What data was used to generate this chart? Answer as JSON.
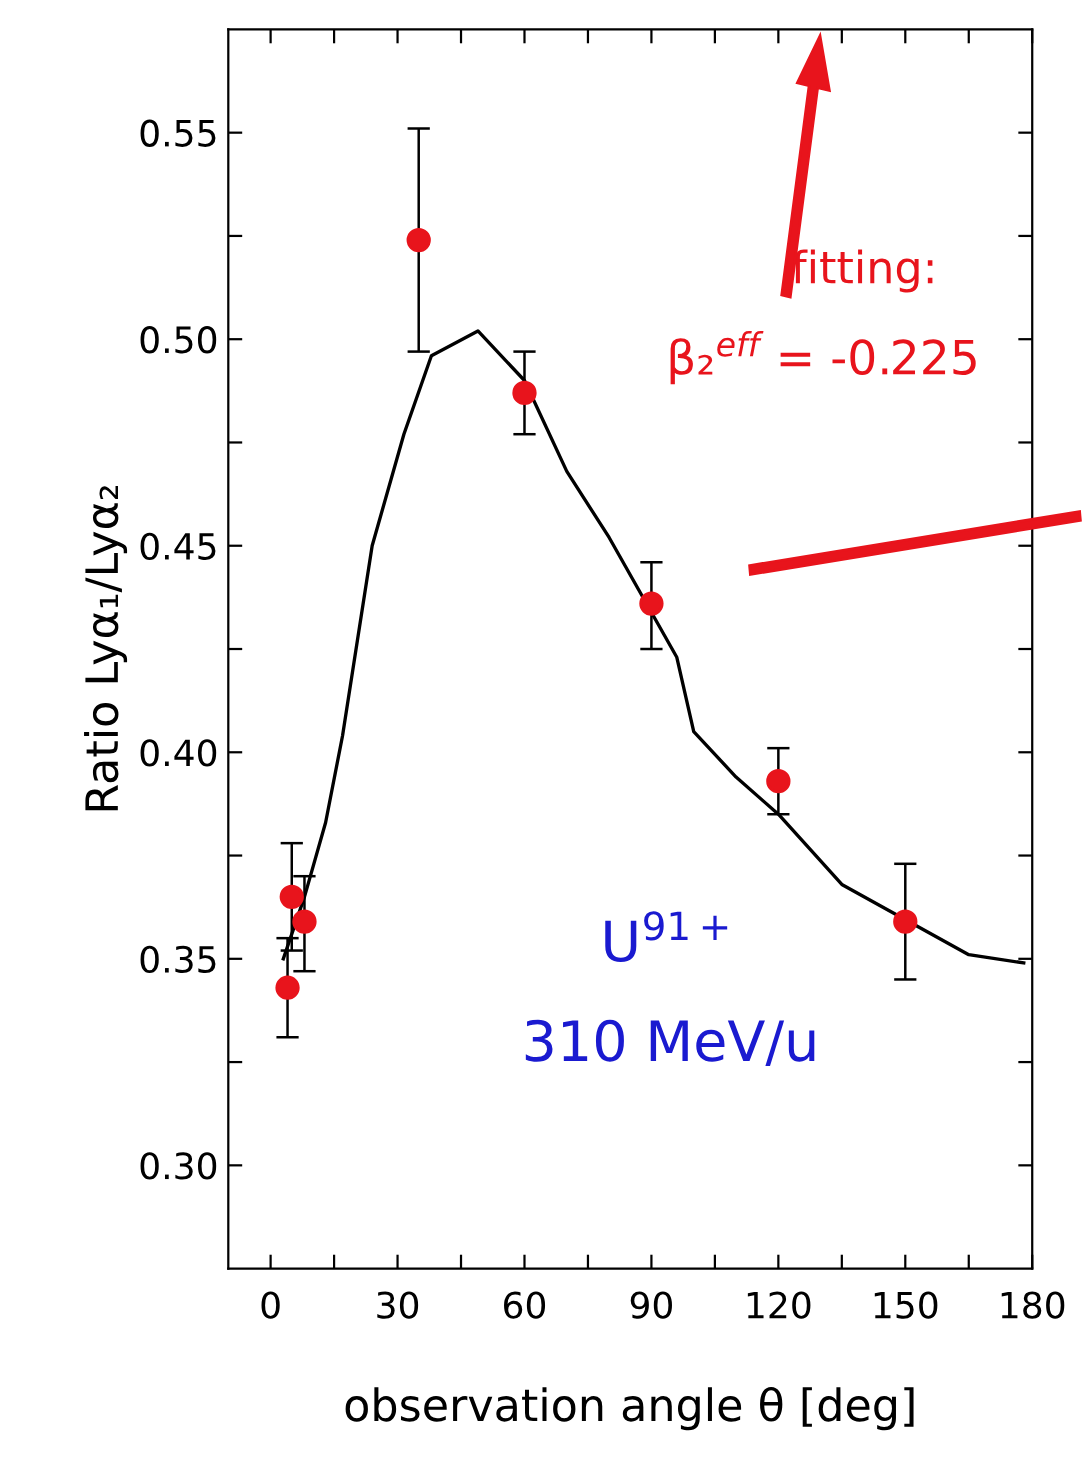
{
  "chart_data": {
    "type": "scatter",
    "xlabel": "observation angle θ [deg]",
    "ylabel": "Ratio Lyα₁/Lyα₂",
    "xlim": [
      -10,
      180
    ],
    "ylim": [
      0.275,
      0.575
    ],
    "xticks": [
      0,
      {
        "value": 15,
        "label": null
      },
      30,
      {
        "value": 45,
        "label": null
      },
      60,
      {
        "value": 75,
        "label": null
      },
      90,
      {
        "value": 105,
        "label": null
      },
      120,
      {
        "value": 135,
        "label": null
      },
      150,
      {
        "value": 165,
        "label": null
      },
      180
    ],
    "yticks": [
      {
        "value": 0.3,
        "label": "0.30"
      },
      {
        "value": 0.325,
        "label": null
      },
      {
        "value": 0.35,
        "label": "0.35"
      },
      {
        "value": 0.375,
        "label": null
      },
      {
        "value": 0.4,
        "label": "0.40"
      },
      {
        "value": 0.425,
        "label": null
      },
      {
        "value": 0.45,
        "label": "0.45"
      },
      {
        "value": 0.475,
        "label": null
      },
      {
        "value": 0.5,
        "label": "0.50"
      },
      {
        "value": 0.525,
        "label": null
      },
      {
        "value": 0.55,
        "label": "0.55"
      }
    ],
    "grid": false,
    "legend": false,
    "series": [
      {
        "type": "line",
        "color": "#000000",
        "marker": "none",
        "line_style": "solid",
        "x": [
          3,
          8,
          13,
          17,
          24,
          31.5,
          38,
          49,
          60,
          70,
          80,
          96,
          100,
          110,
          120,
          135,
          165,
          178
        ],
        "values": [
          0.35,
          0.365,
          0.383,
          0.404,
          0.45,
          0.477,
          0.496,
          0.502,
          0.49,
          0.468,
          0.452,
          0.423,
          0.405,
          0.394,
          0.385,
          0.368,
          0.351,
          0.349
        ]
      },
      {
        "color": "#e8141c",
        "marker": "circle",
        "x": [
          4,
          5,
          8,
          35,
          60,
          90,
          120,
          150
        ],
        "values": [
          0.343,
          0.365,
          0.359,
          0.524,
          0.487,
          0.436,
          0.393,
          0.359
        ],
        "errors": [
          [
            0.331,
            0.355
          ],
          [
            0.352,
            0.378
          ],
          [
            0.347,
            0.37
          ],
          [
            0.497,
            0.551
          ],
          [
            0.477,
            0.497
          ],
          [
            0.425,
            0.446
          ],
          [
            0.385,
            0.401
          ],
          [
            0.345,
            0.373
          ]
        ]
      }
    ],
    "annotations": [
      "fitting:",
      "β₂$^{eff}$ = -0.225",
      "U$^{91+}$",
      "310 MeV/u"
    ]
  }
}
